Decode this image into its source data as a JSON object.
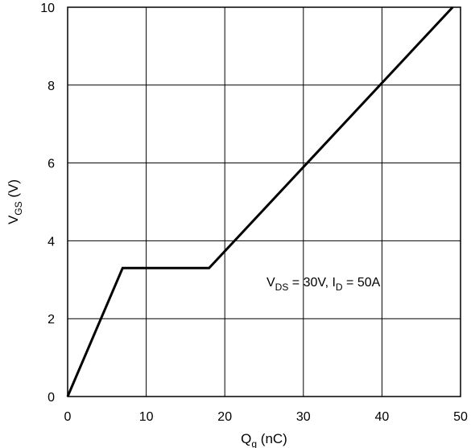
{
  "chart_data": {
    "type": "line",
    "title": "",
    "xlabel": {
      "main": "Q",
      "sub": "g",
      "rest": " (nC)"
    },
    "ylabel": {
      "main": "V",
      "sub": "GS",
      "rest": " (V)"
    },
    "xlim": [
      0,
      50
    ],
    "ylim": [
      0,
      10
    ],
    "x_ticks": [
      0,
      10,
      20,
      30,
      40,
      50
    ],
    "y_ticks": [
      0,
      2,
      4,
      6,
      8,
      10
    ],
    "grid": true,
    "annotation": {
      "parts": [
        {
          "main": "V",
          "sub": "DS",
          "rest": " = 30V, "
        },
        {
          "main": "I",
          "sub": "D",
          "rest": " = 50A"
        }
      ]
    },
    "series": [
      {
        "x": [
          0,
          7,
          18,
          49
        ],
        "y": [
          0,
          3.3,
          3.3,
          10
        ]
      }
    ]
  }
}
